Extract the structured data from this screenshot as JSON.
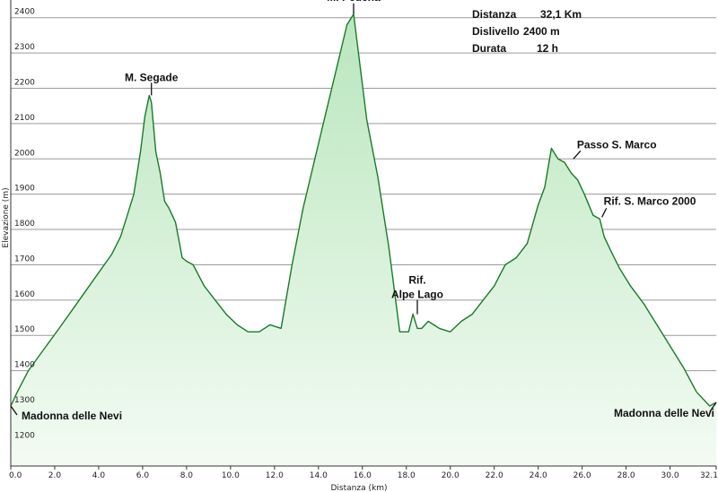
{
  "chart_data": {
    "type": "area",
    "xlabel": "Distanza (km)",
    "ylabel": "Elevazione (m)",
    "xlim": [
      0,
      32.1
    ],
    "ylim": [
      1130,
      2450
    ],
    "x_ticks": [
      "0.0",
      "2.0",
      "4.0",
      "6.0",
      "8.0",
      "10.0",
      "12.0",
      "14.0",
      "16.0",
      "18.0",
      "20.0",
      "22.0",
      "24.0",
      "26.0",
      "28.0",
      "30.0",
      "32.1"
    ],
    "y_ticks": [
      "1200",
      "1300",
      "1400",
      "1500",
      "1600",
      "1700",
      "1800",
      "1900",
      "2000",
      "2100",
      "2200",
      "2300",
      "2400"
    ],
    "grid": true,
    "line_color": "#1a7a2a",
    "fill_top_color": "#b9e6bd",
    "fill_bottom_color": "#f3fbf3",
    "series": [
      {
        "x": [
          0.0,
          0.3,
          0.8,
          1.5,
          2.2,
          3.0,
          3.8,
          4.6,
          5.0,
          5.3,
          5.6,
          5.9,
          6.1,
          6.3,
          6.4,
          6.6,
          6.8,
          7.0,
          7.2,
          7.5,
          7.8,
          8.0,
          8.3,
          8.8,
          9.3,
          9.8,
          10.3,
          10.8,
          11.3,
          11.8,
          12.3,
          12.8,
          13.3,
          13.8,
          14.3,
          14.8,
          15.3,
          15.6,
          15.8,
          16.2,
          16.7,
          17.2,
          17.7,
          18.1,
          18.3,
          18.5,
          18.7,
          19.0,
          19.5,
          20.0,
          20.5,
          21.0,
          21.5,
          22.0,
          22.5,
          23.0,
          23.5,
          24.0,
          24.3,
          24.6,
          24.9,
          25.2,
          25.5,
          25.8,
          26.1,
          26.5,
          26.8,
          27.0,
          27.3,
          27.7,
          28.2,
          28.8,
          29.4,
          30.0,
          30.6,
          31.2,
          31.8,
          32.1
        ],
        "y": [
          1300,
          1340,
          1400,
          1460,
          1520,
          1590,
          1660,
          1730,
          1780,
          1840,
          1900,
          2020,
          2120,
          2180,
          2160,
          2020,
          1960,
          1880,
          1860,
          1820,
          1720,
          1710,
          1700,
          1640,
          1600,
          1560,
          1530,
          1510,
          1510,
          1530,
          1520,
          1700,
          1860,
          1990,
          2120,
          2250,
          2380,
          2410,
          2310,
          2110,
          1950,
          1750,
          1510,
          1510,
          1560,
          1520,
          1520,
          1540,
          1520,
          1510,
          1540,
          1560,
          1600,
          1640,
          1700,
          1720,
          1760,
          1870,
          1920,
          2030,
          2000,
          1990,
          1960,
          1940,
          1900,
          1840,
          1830,
          1780,
          1740,
          1690,
          1640,
          1590,
          1530,
          1470,
          1410,
          1340,
          1300,
          1310
        ]
      }
    ],
    "annotations": [
      {
        "text": "M. Segade",
        "x": 6.4,
        "y": 2180,
        "lines": [
          "M. Segade"
        ]
      },
      {
        "text": "M. Pedena",
        "x": 15.6,
        "y": 2410,
        "lines": [
          "M. Pedena"
        ]
      },
      {
        "text": "Rif. Alpe Lago",
        "x": 18.5,
        "y": 1560,
        "lines": [
          "Rif.",
          "Alpe Lago"
        ]
      },
      {
        "text": "Passo S. Marco",
        "x": 25.6,
        "y": 2000,
        "lines": [
          "Passo S. Marco"
        ]
      },
      {
        "text": "Rif. S. Marco 2000",
        "x": 26.9,
        "y": 1835,
        "lines": [
          "Rif. S. Marco 2000"
        ]
      },
      {
        "text": "Madonna delle Nevi",
        "x": 0.0,
        "y": 1300,
        "lines": [
          "Madonna delle Nevi"
        ]
      },
      {
        "text": "Madonna delle Nevi",
        "x": 32.1,
        "y": 1310,
        "lines": [
          "Madonna delle Nevi"
        ]
      }
    ],
    "stats": [
      {
        "label": "Distanza",
        "value": "32,1 Km"
      },
      {
        "label": "Dislivello",
        "value": "2400 m"
      },
      {
        "label": "Durata",
        "value": "12 h"
      }
    ]
  }
}
